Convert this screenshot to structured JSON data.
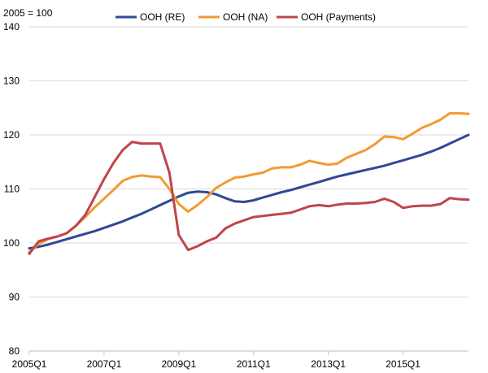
{
  "chart_data": {
    "type": "line",
    "unit_label": "2005 = 100",
    "ylim": [
      80,
      140
    ],
    "yticks": [
      80,
      90,
      100,
      110,
      120,
      130,
      140
    ],
    "x_start": "2005Q1",
    "n_quarters": 48,
    "xtick_labels": [
      "2005Q1",
      "2007Q1",
      "2009Q1",
      "2011Q1",
      "2013Q1",
      "2015Q1"
    ],
    "legend_position": "top",
    "series": [
      {
        "name": "OOH (RE)",
        "color": "#2e4a94",
        "values": [
          99.0,
          99.3,
          99.7,
          100.2,
          100.7,
          101.2,
          101.7,
          102.2,
          102.8,
          103.4,
          104.0,
          104.7,
          105.4,
          106.2,
          107.0,
          107.8,
          108.6,
          109.3,
          109.5,
          109.4,
          109.0,
          108.3,
          107.7,
          107.6,
          107.9,
          108.4,
          108.9,
          109.4,
          109.8,
          110.3,
          110.8,
          111.3,
          111.8,
          112.3,
          112.7,
          113.1,
          113.5,
          113.9,
          114.3,
          114.8,
          115.3,
          115.8,
          116.3,
          116.9,
          117.6,
          118.4,
          119.2,
          120.0
        ]
      },
      {
        "name": "OOH (NA)",
        "color": "#f39a33",
        "values": [
          98.3,
          99.8,
          100.7,
          101.2,
          101.8,
          103.2,
          104.8,
          106.6,
          108.2,
          109.8,
          111.5,
          112.2,
          112.5,
          112.3,
          112.2,
          110.0,
          107.2,
          105.8,
          107.0,
          108.5,
          110.2,
          111.2,
          112.1,
          112.3,
          112.7,
          113.0,
          113.8,
          114.0,
          114.0,
          114.5,
          115.2,
          114.8,
          114.5,
          114.7,
          115.8,
          116.5,
          117.2,
          118.3,
          119.7,
          119.6,
          119.2,
          120.2,
          121.3,
          122.0,
          122.8,
          124.0,
          124.0,
          123.9
        ]
      },
      {
        "name": "OOH (Payments)",
        "color": "#c0454a",
        "values": [
          98.0,
          100.3,
          100.8,
          101.2,
          101.8,
          103.2,
          105.2,
          108.5,
          111.8,
          114.8,
          117.2,
          118.7,
          118.4,
          118.4,
          118.4,
          113.0,
          101.5,
          98.7,
          99.4,
          100.3,
          101.0,
          102.7,
          103.6,
          104.2,
          104.8,
          105.0,
          105.2,
          105.4,
          105.6,
          106.2,
          106.8,
          107.0,
          106.8,
          107.1,
          107.3,
          107.3,
          107.4,
          107.6,
          108.2,
          107.6,
          106.5,
          106.8,
          106.9,
          106.9,
          107.2,
          108.3,
          108.1,
          108.0
        ]
      }
    ]
  }
}
